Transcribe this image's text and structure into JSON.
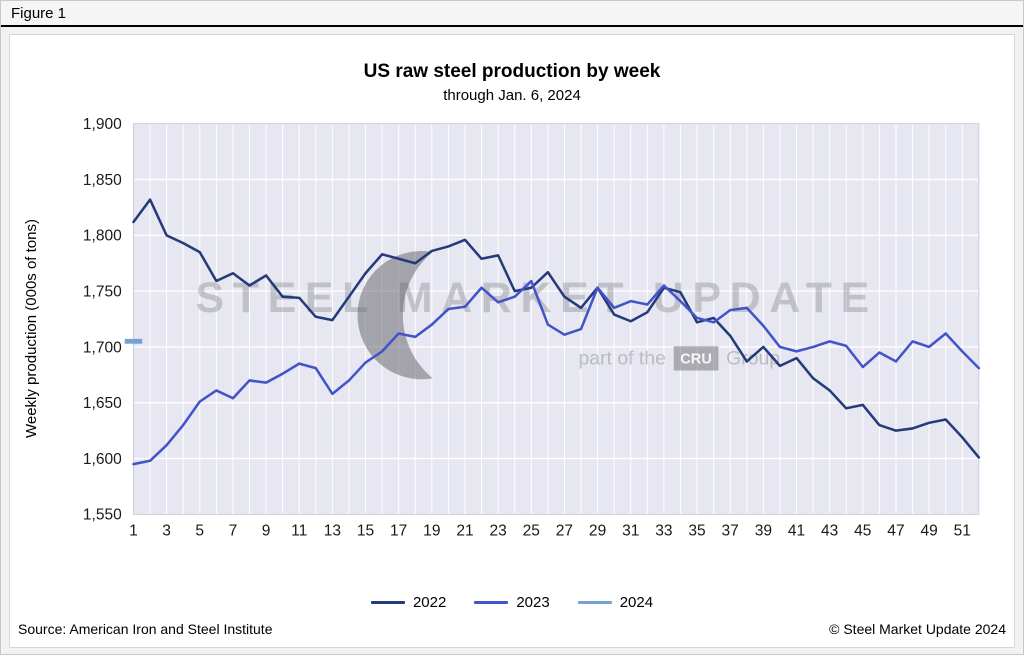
{
  "figure_label": "Figure 1",
  "chart_data": {
    "type": "line",
    "title": "US raw steel production by week",
    "subtitle": "through Jan. 6, 2024",
    "ylabel": "Weekly production (000s of tons)",
    "xlabel": "",
    "ylim": [
      1550,
      1900
    ],
    "ytick_step": 50,
    "x_max": 52,
    "xticks": [
      1,
      3,
      5,
      7,
      9,
      11,
      13,
      15,
      17,
      19,
      21,
      23,
      25,
      27,
      29,
      31,
      33,
      35,
      37,
      39,
      41,
      43,
      45,
      47,
      49,
      51
    ],
    "grid": true,
    "legend_position": "bottom",
    "colors": {
      "plot_bg": "#E7E7F1",
      "plot_border": "#C9CAD6",
      "grid": "#FFFFFF"
    },
    "series": [
      {
        "name": "2022",
        "color": "#243A7A",
        "values": [
          1812,
          1832,
          1800,
          1793,
          1785,
          1759,
          1766,
          1755,
          1764,
          1745,
          1744,
          1727,
          1724,
          1745,
          1766,
          1783,
          1779,
          1775,
          1786,
          1790,
          1796,
          1779,
          1782,
          1750,
          1753,
          1767,
          1745,
          1735,
          1753,
          1729,
          1723,
          1731,
          1753,
          1749,
          1722,
          1726,
          1710,
          1687,
          1700,
          1683,
          1690,
          1672,
          1661,
          1645,
          1648,
          1630,
          1625,
          1627,
          1632,
          1635,
          1619,
          1601
        ]
      },
      {
        "name": "2023",
        "color": "#4353C9",
        "values": [
          1595,
          1598,
          1612,
          1630,
          1651,
          1661,
          1654,
          1670,
          1668,
          1676,
          1685,
          1681,
          1658,
          1670,
          1686,
          1696,
          1712,
          1709,
          1720,
          1734,
          1736,
          1753,
          1740,
          1745,
          1759,
          1720,
          1711,
          1716,
          1753,
          1735,
          1741,
          1738,
          1755,
          1741,
          1726,
          1722,
          1733,
          1735,
          1719,
          1700,
          1696,
          1700,
          1705,
          1701,
          1682,
          1695,
          1687,
          1705,
          1700,
          1712,
          1696,
          1681
        ]
      },
      {
        "name": "2024",
        "color": "#74A3D2",
        "values": [
          1705
        ]
      }
    ]
  },
  "watermark": {
    "line1": "STEEL MARKET UPDATE",
    "line2_prefix": "part of the",
    "line2_box": "CRU",
    "line2_suffix": "Group"
  },
  "footer": {
    "source": "Source: American Iron and Steel Institute",
    "copyright": "© Steel Market Update 2024"
  }
}
